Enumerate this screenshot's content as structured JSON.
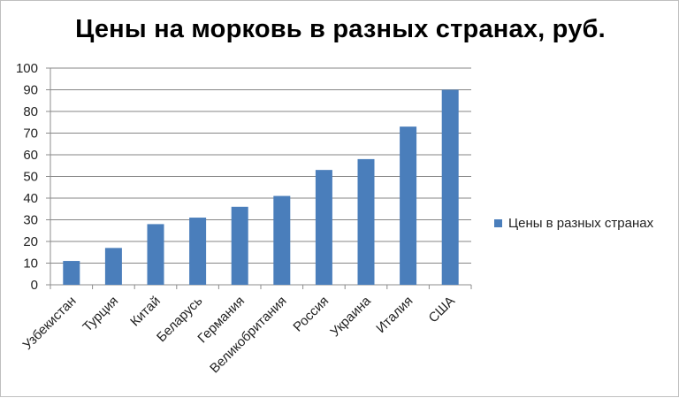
{
  "chart_data": {
    "type": "bar",
    "title": "Цены на морковь в разных странах, руб.",
    "categories": [
      "Узбекистан",
      "Турция",
      "Китай",
      "Беларусь",
      "Германия",
      "Великобритания",
      "Россия",
      "Украина",
      "Италия",
      "США"
    ],
    "series": [
      {
        "name": "Цены в разных странах",
        "values": [
          11,
          17,
          28,
          31,
          36,
          41,
          53,
          58,
          73,
          90
        ],
        "color": "#4a7ebb"
      }
    ],
    "ylim": [
      0,
      100
    ],
    "yticks": [
      "0",
      "10",
      "20",
      "30",
      "40",
      "50",
      "60",
      "70",
      "80",
      "90",
      "100"
    ],
    "grid": true,
    "legend_position": "right",
    "xlabel": "",
    "ylabel": ""
  }
}
